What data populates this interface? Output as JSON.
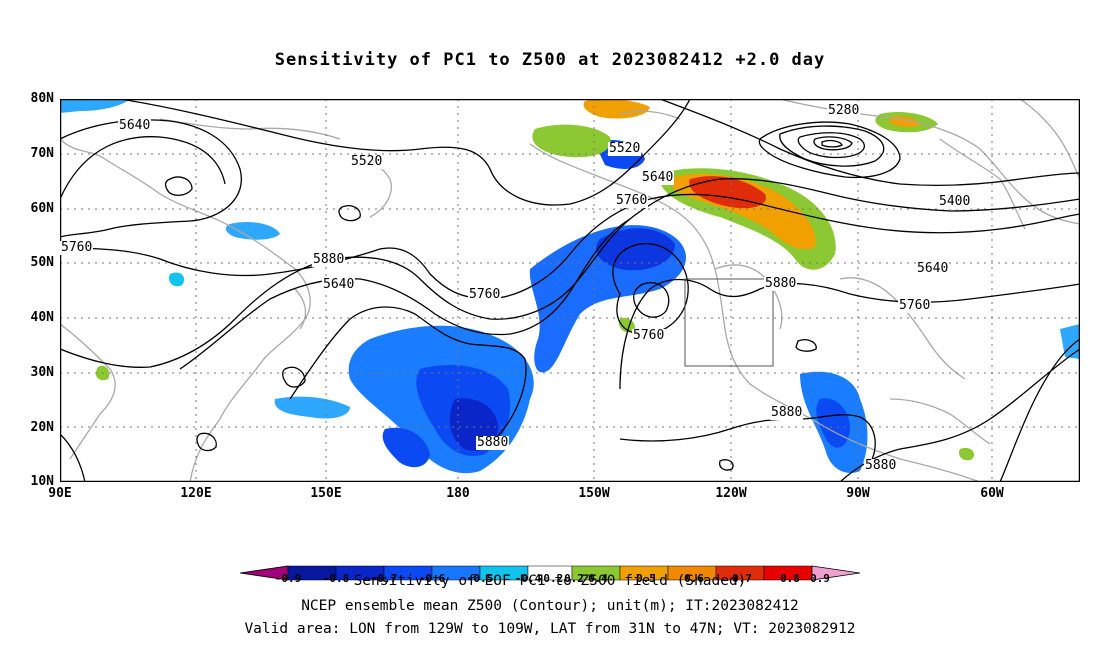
{
  "title": "Sensitivity of PC1 to Z500 at 2023082412 +2.0 day",
  "y_axis": [
    "80N",
    "70N",
    "60N",
    "50N",
    "40N",
    "30N",
    "20N",
    "10N"
  ],
  "x_axis": [
    "90E",
    "120E",
    "150E",
    "180",
    "150W",
    "120W",
    "90W",
    "60W"
  ],
  "contour_labels": [
    "5640",
    "5520",
    "5760",
    "5880",
    "5640",
    "5760",
    "5880",
    "5640",
    "5760",
    "5520",
    "5280",
    "5400",
    "5640",
    "5760",
    "5880",
    "5880",
    "5880",
    "5760"
  ],
  "colorbar_ticks": [
    "-0.9",
    "-0.8",
    "-0.7",
    "-0.6",
    "-0.5",
    "-0.4",
    "-0.2",
    "0.2",
    "0.4",
    "0.5",
    "0.6",
    "0.7",
    "0.8",
    "0.9"
  ],
  "colorbar_colors": [
    "#a0007a",
    "#08189c",
    "#0a26c8",
    "#0b49f2",
    "#1877ff",
    "#2ea8ff",
    "#12c3ee",
    "#ffffff",
    "#8cc832",
    "#f0a000",
    "#f08800",
    "#f06000",
    "#e02c0a",
    "#e80000",
    "#f0a0d0"
  ],
  "footer": {
    "line1": "Sensitivity of EOF PC1 to Z500 field (Shaded)",
    "line2": "NCEP ensemble mean Z500 (Contour); unit(m); IT:2023082412",
    "line3": "Valid area: LON from 129W to 109W, LAT from 31N to 47N; VT: 2023082912"
  },
  "valid_area": {
    "lon_from": "129W",
    "lon_to": "109W",
    "lat_from": "31N",
    "lat_to": "47N"
  }
}
